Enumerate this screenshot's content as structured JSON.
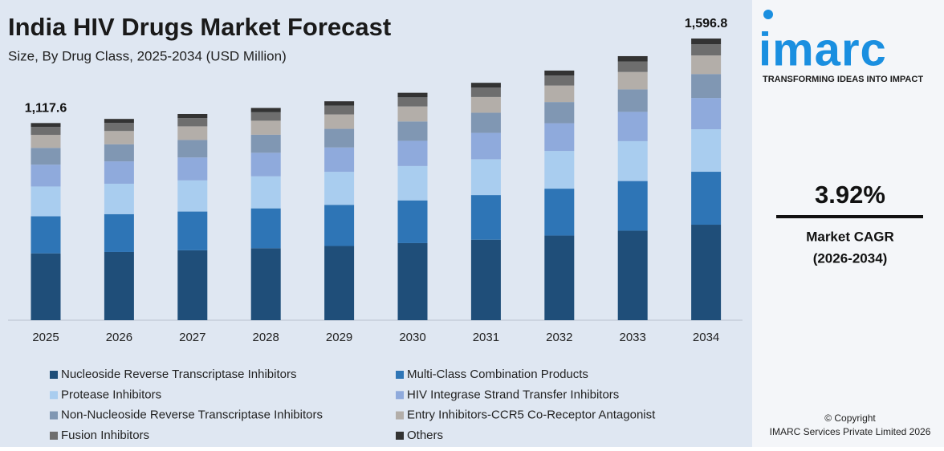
{
  "chart_data": {
    "type": "stacked_bar",
    "title": "India HIV Drugs Market Forecast",
    "subtitle": "Size, By Drug Class, 2025-2034 (USD Million)",
    "categories": [
      "2025",
      "2026",
      "2027",
      "2028",
      "2029",
      "2030",
      "2031",
      "2032",
      "2033",
      "2034"
    ],
    "series": [
      {
        "name": "Nucleoside Reverse Transcriptase Inhibitors",
        "color": "#1f4e79",
        "values": [
          378.9,
          386.8,
          396.3,
          407.8,
          420.7,
          437.0,
          456.3,
          479.7,
          507.5,
          541.3
        ]
      },
      {
        "name": "Multi-Class Combination Products",
        "color": "#2e75b6",
        "values": [
          210.1,
          214.5,
          219.8,
          226.2,
          233.3,
          242.3,
          253.0,
          266.0,
          281.4,
          300.2
        ]
      },
      {
        "name": "Protease Inhibitors",
        "color": "#a9cdef",
        "values": [
          168.8,
          172.3,
          176.5,
          181.7,
          187.4,
          194.6,
          203.2,
          213.7,
          226.0,
          241.1
        ]
      },
      {
        "name": "HIV Integrase Strand Transfer Inhibitors",
        "color": "#8faadc",
        "values": [
          124.1,
          126.7,
          129.8,
          133.5,
          137.8,
          143.1,
          149.4,
          157.1,
          166.2,
          177.2
        ]
      },
      {
        "name": "Non-Nucleoside Reverse Transcriptase Inhibitors",
        "color": "#8097b3",
        "values": [
          95.0,
          97.0,
          99.4,
          102.3,
          105.5,
          109.6,
          114.4,
          120.3,
          127.2,
          135.7
        ]
      },
      {
        "name": "Entry Inhibitors-CCR5 Co-Receptor Antagonist",
        "color": "#b3aea9",
        "values": [
          73.8,
          75.3,
          77.2,
          79.4,
          81.9,
          85.1,
          88.8,
          93.4,
          98.8,
          105.4
        ]
      },
      {
        "name": "Fusion Inhibitors",
        "color": "#6e6e6e",
        "values": [
          44.7,
          45.6,
          46.8,
          48.1,
          49.6,
          51.6,
          53.8,
          56.6,
          59.9,
          63.9
        ]
      },
      {
        "name": "Others",
        "color": "#333333",
        "values": [
          22.2,
          22.8,
          23.4,
          24.1,
          24.8,
          25.8,
          26.9,
          28.3,
          29.9,
          32.0
        ]
      }
    ],
    "totals": [
      1117.6,
      null,
      null,
      null,
      null,
      null,
      null,
      null,
      null,
      1596.8
    ],
    "total_labels": [
      "1,117.6",
      null,
      null,
      null,
      null,
      null,
      null,
      null,
      null,
      "1,596.8"
    ]
  },
  "sidebar": {
    "logo": "imarc",
    "tagline": "TRANSFORMING IDEAS INTO IMPACT",
    "cagr": "3.92%",
    "cagr_label": "Market CAGR",
    "cagr_period": "(2026-2034)",
    "copyright": "© Copyright",
    "company": "IMARC Services Private Limited 2026"
  }
}
